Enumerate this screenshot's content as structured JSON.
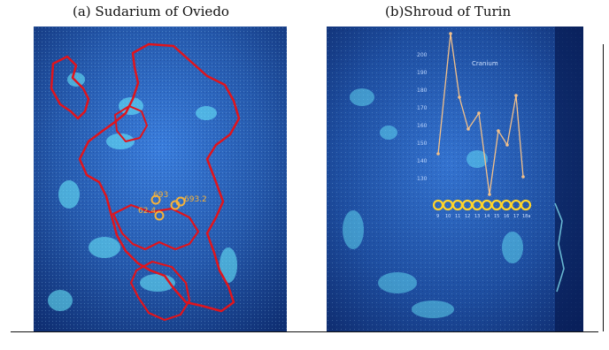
{
  "figure": {
    "left_title": "(a) Sudarium of Oviedo",
    "right_title": "(b)Shroud of Turin",
    "left_labels": [
      "693",
      "693.2",
      "62.4"
    ],
    "right_label": "Cranium",
    "right_axis_labels": [
      "200",
      "190",
      "180",
      "170",
      "160",
      "150",
      "140",
      "130"
    ],
    "right_x_labels": [
      "9",
      "10",
      "11",
      "12",
      "13",
      "14",
      "15",
      "16",
      "17",
      "18a"
    ],
    "colors": {
      "outline_red": "#e0141c",
      "trace_orange": "#f5b23a",
      "background_blue": "#2b63b3"
    }
  }
}
